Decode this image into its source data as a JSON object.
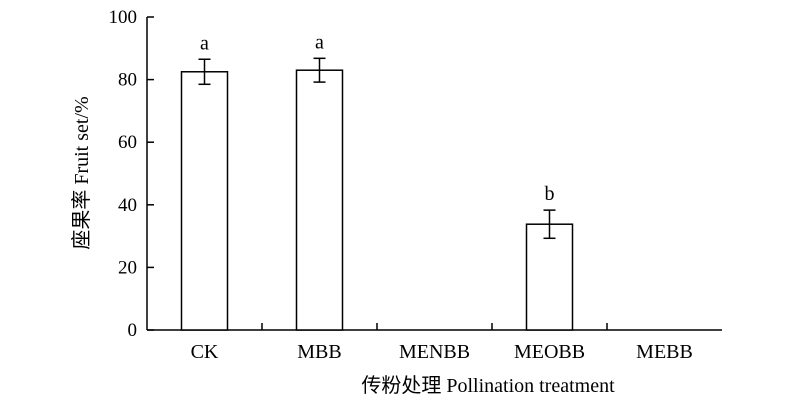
{
  "chart_data": {
    "type": "bar",
    "categories": [
      "CK",
      "MBB",
      "MENBB",
      "MEOBB",
      "MEBB"
    ],
    "values": [
      82.5,
      83.0,
      0,
      33.8,
      0
    ],
    "errors": [
      4.0,
      3.8,
      0,
      4.5,
      0
    ],
    "significance": [
      "a",
      "a",
      "",
      "b",
      ""
    ],
    "xlabel": "传粉处理 Pollination treatment",
    "ylabel": "座果率 Fruit set/%",
    "ylim": [
      0,
      100
    ],
    "yticks": [
      0,
      20,
      40,
      60,
      80,
      100
    ],
    "grid": false,
    "legend": "none",
    "colors": {
      "bar_fill": "#ffffff",
      "bar_stroke": "#000000",
      "axis": "#000000"
    }
  }
}
